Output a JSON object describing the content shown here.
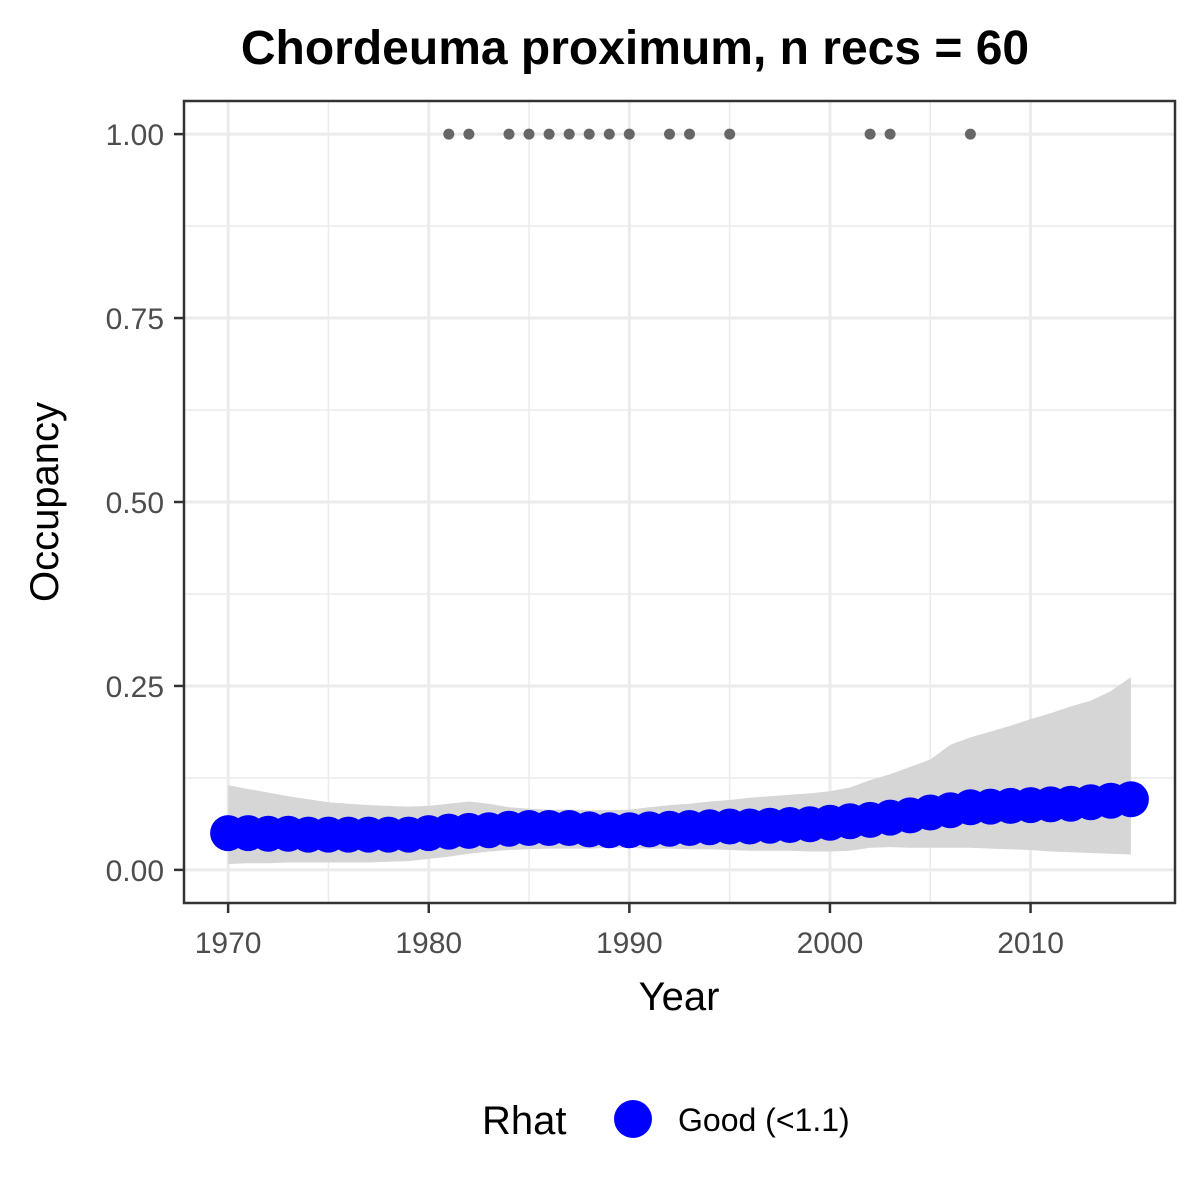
{
  "chart_data": {
    "type": "line",
    "title": "Chordeuma proximum, n recs = 60",
    "xlabel": "Year",
    "ylabel": "Occupancy",
    "xlim": [
      1967.8,
      2017.2
    ],
    "ylim": [
      -0.045,
      1.045
    ],
    "x_ticks": [
      1970,
      1980,
      1990,
      2000,
      2010
    ],
    "x_tick_labels": [
      "1970",
      "1980",
      "1990",
      "2000",
      "2010"
    ],
    "y_ticks": [
      0,
      0.25,
      0.5,
      0.75,
      1
    ],
    "y_tick_labels": [
      "0.00",
      "0.25",
      "0.50",
      "0.75",
      "1.00"
    ],
    "grid": true,
    "legend": {
      "position": "bottom",
      "title": "Rhat",
      "label": "Good (<1.1)",
      "color": "#0000ff"
    },
    "colors": {
      "estimate": "#0000ff",
      "ribbon": "#d6d6d6",
      "observations": "#666666",
      "panel_border": "#333333",
      "grid": "#ebebeb"
    },
    "series": [
      {
        "name": "Good (<1.1)",
        "x": [
          1970,
          1971,
          1972,
          1973,
          1974,
          1975,
          1976,
          1977,
          1978,
          1979,
          1980,
          1981,
          1982,
          1983,
          1984,
          1985,
          1986,
          1987,
          1988,
          1989,
          1990,
          1991,
          1992,
          1993,
          1994,
          1995,
          1996,
          1997,
          1998,
          1999,
          2000,
          2001,
          2002,
          2003,
          2004,
          2005,
          2006,
          2007,
          2008,
          2009,
          2010,
          2011,
          2012,
          2013,
          2014,
          2015
        ],
        "y": [
          0.05,
          0.05,
          0.049,
          0.049,
          0.048,
          0.048,
          0.048,
          0.048,
          0.048,
          0.048,
          0.05,
          0.052,
          0.053,
          0.054,
          0.056,
          0.057,
          0.057,
          0.057,
          0.055,
          0.054,
          0.054,
          0.055,
          0.056,
          0.057,
          0.058,
          0.059,
          0.059,
          0.06,
          0.061,
          0.062,
          0.064,
          0.066,
          0.068,
          0.071,
          0.074,
          0.078,
          0.081,
          0.085,
          0.086,
          0.087,
          0.088,
          0.089,
          0.09,
          0.092,
          0.094,
          0.096
        ],
        "lower": [
          0.008,
          0.009,
          0.009,
          0.01,
          0.01,
          0.01,
          0.01,
          0.01,
          0.011,
          0.012,
          0.015,
          0.018,
          0.022,
          0.025,
          0.027,
          0.028,
          0.029,
          0.029,
          0.029,
          0.03,
          0.03,
          0.029,
          0.029,
          0.028,
          0.028,
          0.027,
          0.026,
          0.026,
          0.026,
          0.025,
          0.025,
          0.026,
          0.03,
          0.031,
          0.03,
          0.03,
          0.03,
          0.03,
          0.029,
          0.028,
          0.027,
          0.025,
          0.024,
          0.023,
          0.022,
          0.021
        ],
        "upper": [
          0.115,
          0.11,
          0.105,
          0.1,
          0.096,
          0.092,
          0.09,
          0.088,
          0.087,
          0.086,
          0.087,
          0.09,
          0.093,
          0.09,
          0.085,
          0.083,
          0.082,
          0.082,
          0.081,
          0.081,
          0.082,
          0.085,
          0.088,
          0.09,
          0.093,
          0.095,
          0.098,
          0.1,
          0.102,
          0.104,
          0.107,
          0.112,
          0.122,
          0.13,
          0.14,
          0.15,
          0.17,
          0.18,
          0.188,
          0.196,
          0.205,
          0.213,
          0.222,
          0.23,
          0.243,
          0.262
        ]
      }
    ],
    "observations": {
      "x": [
        1981,
        1982,
        1984,
        1985,
        1986,
        1987,
        1988,
        1989,
        1990,
        1992,
        1993,
        1995,
        2002,
        2003,
        2007
      ],
      "y": [
        1,
        1,
        1,
        1,
        1,
        1,
        1,
        1,
        1,
        1,
        1,
        1,
        1,
        1,
        1
      ]
    }
  }
}
